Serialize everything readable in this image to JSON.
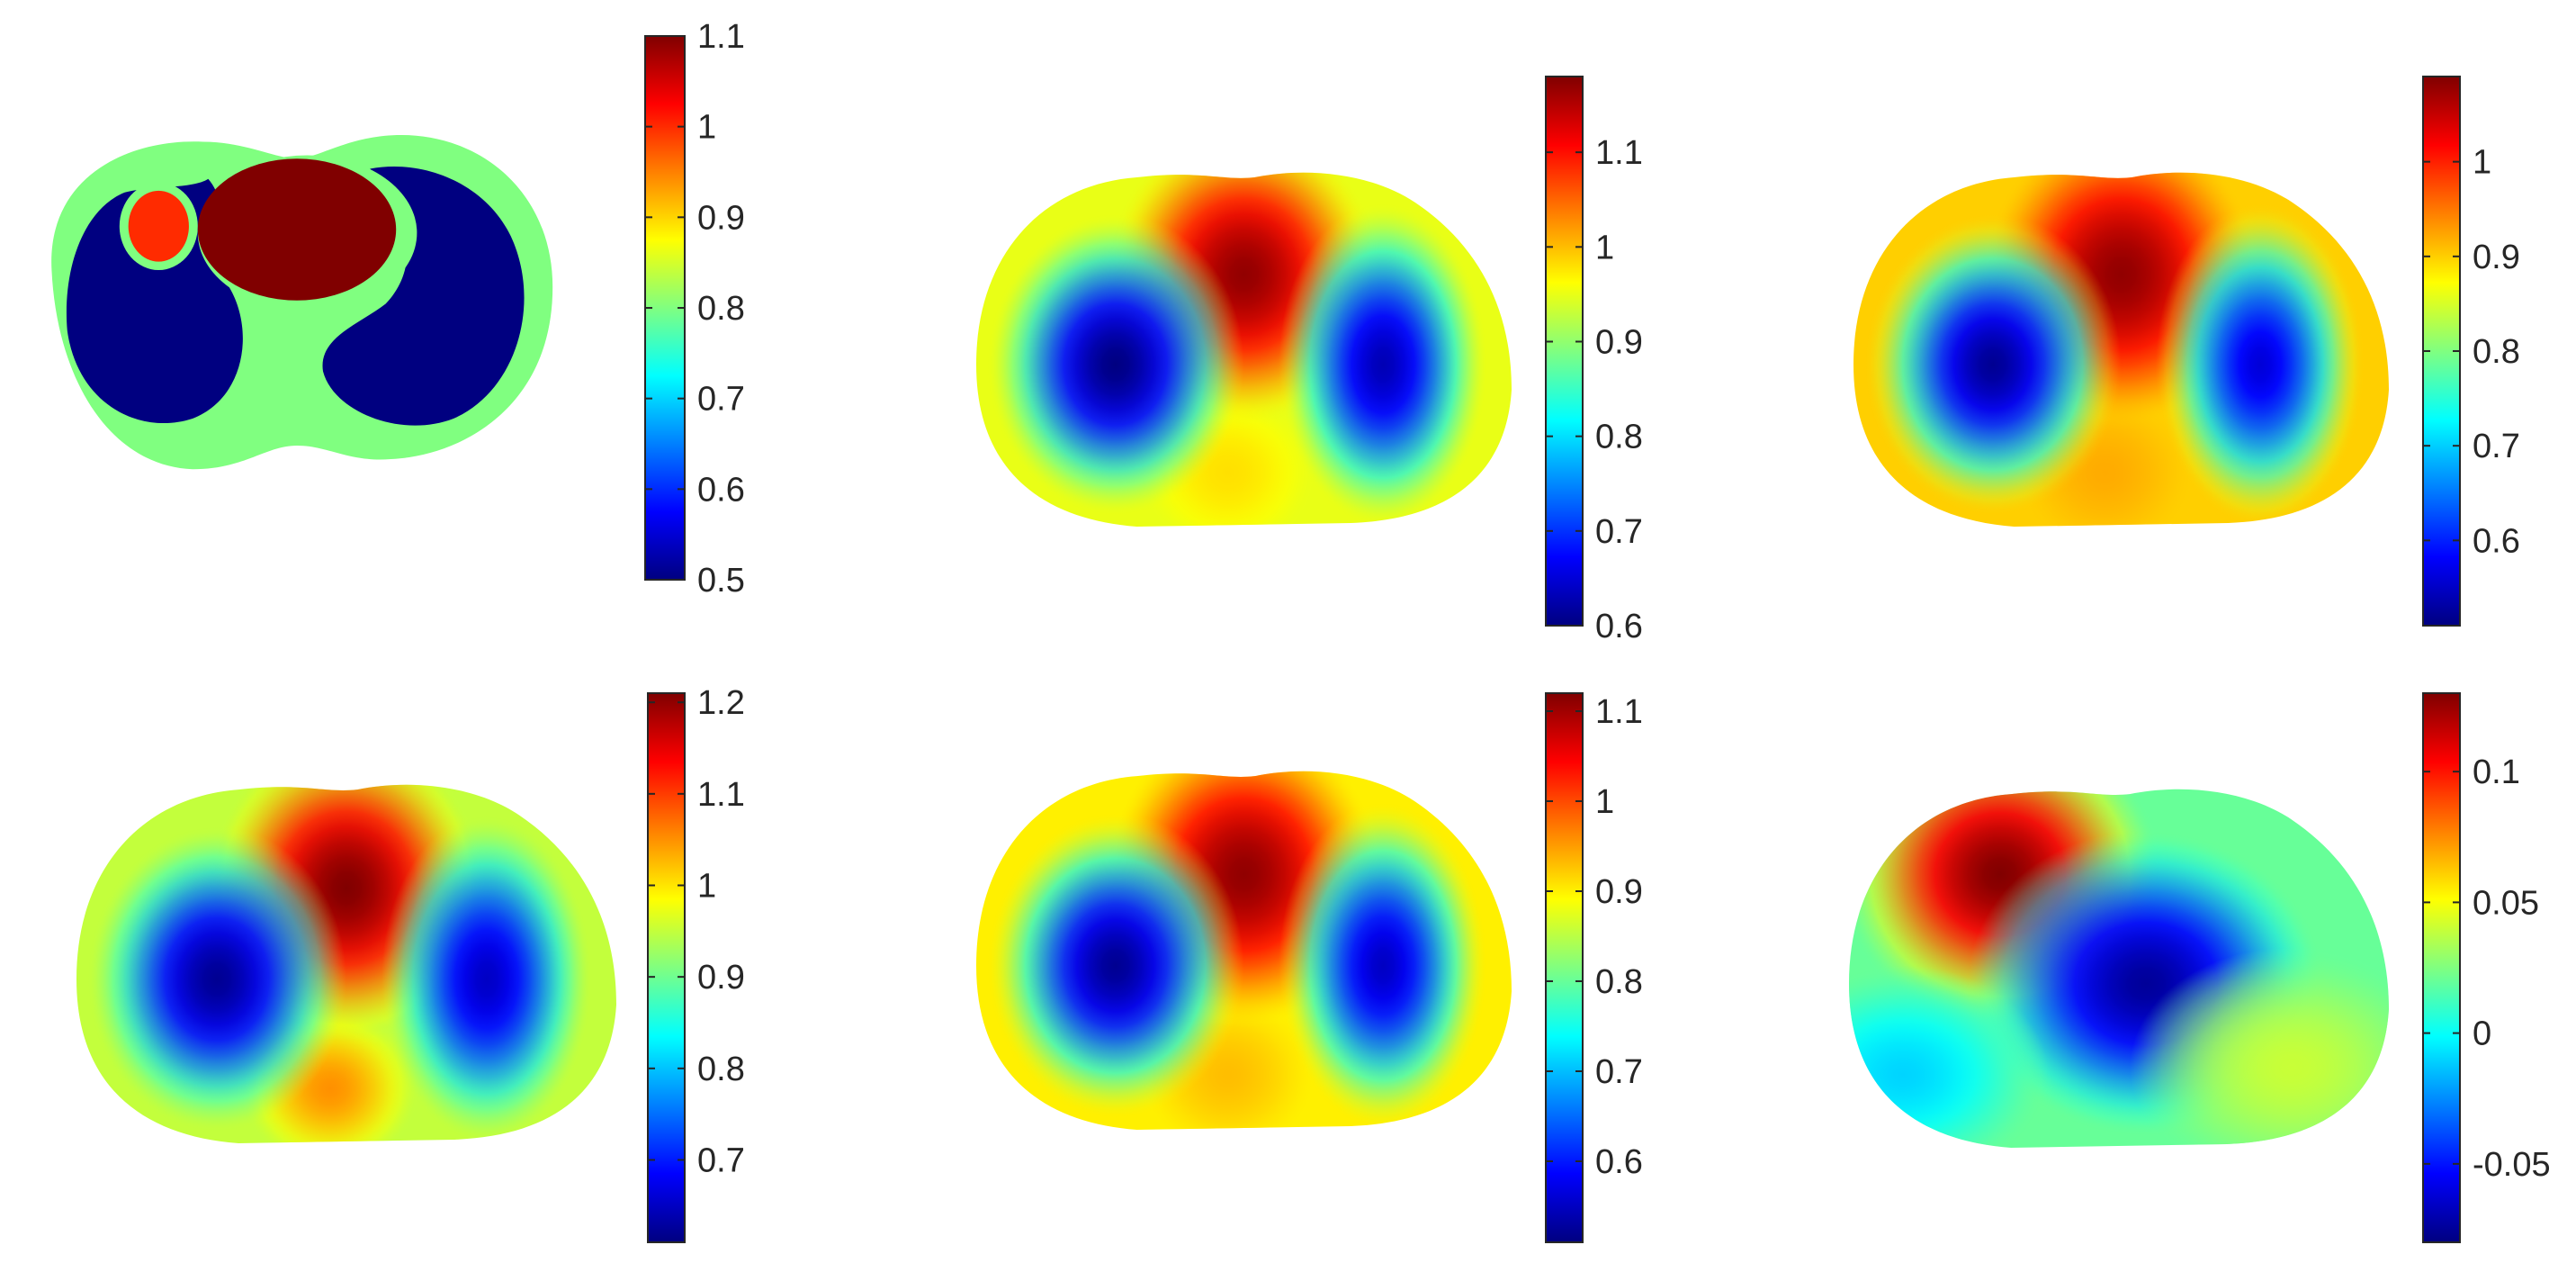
{
  "chart_data": [
    {
      "type": "heatmap",
      "description_of_field": "segmented thorax phantom with discrete values",
      "colormap": "jet",
      "regions": [
        {
          "region": "body",
          "value": 0.8
        },
        {
          "region": "left-lung",
          "value": 0.5
        },
        {
          "region": "right-lung",
          "value": 0.5
        },
        {
          "region": "heart",
          "value": 1.1
        },
        {
          "region": "small-inclusion",
          "value": 1.0
        }
      ],
      "colorbar": {
        "range": [
          0.5,
          1.1
        ],
        "ticks": [
          "0.5",
          "0.6",
          "0.7",
          "0.8",
          "0.9",
          "1",
          "1.1"
        ]
      }
    },
    {
      "type": "heatmap",
      "colormap": "jet",
      "blobs": [
        {
          "feature": "lower-center",
          "value": 0.98
        },
        {
          "feature": "upper-center",
          "value": 1.17
        },
        {
          "feature": "left-lobe",
          "value": 0.6
        },
        {
          "feature": "right-lobe",
          "value": 0.63
        }
      ],
      "background_value": 0.95,
      "colorbar": {
        "range": [
          0.6,
          1.18
        ],
        "ticks": [
          "0.6",
          "0.7",
          "0.8",
          "0.9",
          "1",
          "1.1"
        ]
      }
    },
    {
      "type": "heatmap",
      "colormap": "jet",
      "blobs": [
        {
          "feature": "lower-center",
          "value": 0.92
        },
        {
          "feature": "upper-center",
          "value": 1.08
        },
        {
          "feature": "left-lobe",
          "value": 0.52
        },
        {
          "feature": "right-lobe",
          "value": 0.56
        }
      ],
      "background_value": 0.9,
      "colorbar": {
        "range": [
          0.51,
          1.09
        ],
        "ticks": [
          "0.6",
          "0.7",
          "0.8",
          "0.9",
          "1"
        ]
      }
    },
    {
      "type": "heatmap",
      "colormap": "jet",
      "blobs": [
        {
          "feature": "lower-center",
          "value": 1.05
        },
        {
          "feature": "upper-center",
          "value": 1.21
        },
        {
          "feature": "left-lobe",
          "value": 0.62
        },
        {
          "feature": "right-lobe",
          "value": 0.65
        }
      ],
      "background_value": 0.95,
      "colorbar": {
        "range": [
          0.61,
          1.21
        ],
        "ticks": [
          "0.7",
          "0.8",
          "0.9",
          "1",
          "1.1",
          "1.2"
        ]
      }
    },
    {
      "type": "heatmap",
      "colormap": "jet",
      "blobs": [
        {
          "feature": "lower-center",
          "value": 0.93
        },
        {
          "feature": "upper-center",
          "value": 1.11
        },
        {
          "feature": "left-lobe",
          "value": 0.52
        },
        {
          "feature": "right-lobe",
          "value": 0.55
        }
      ],
      "background_value": 0.9,
      "colorbar": {
        "range": [
          0.51,
          1.12
        ],
        "ticks": [
          "0.6",
          "0.7",
          "0.8",
          "0.9",
          "1",
          "1.1"
        ]
      }
    },
    {
      "type": "heatmap",
      "colormap": "jet",
      "blobs": [
        {
          "feature": "upper-left",
          "value": 0.13
        },
        {
          "feature": "center-right",
          "value": -0.075
        },
        {
          "feature": "lower-left-cool",
          "value": -0.01
        },
        {
          "feature": "lower-right-warm",
          "value": 0.04
        }
      ],
      "background_value": 0.02,
      "colorbar": {
        "range": [
          -0.08,
          0.13
        ],
        "ticks": [
          "-0.05",
          "0",
          "0.05",
          "0.1"
        ]
      }
    }
  ]
}
